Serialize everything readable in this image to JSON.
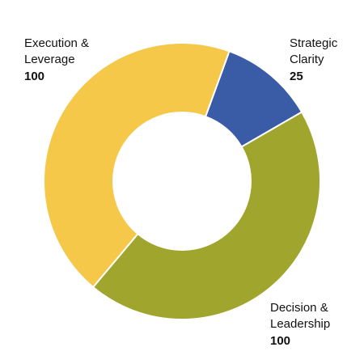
{
  "chart_data": {
    "type": "pie",
    "variant": "donut",
    "grid": false,
    "legend": "none",
    "categories": [
      "Strategic Clarity",
      "Decision & Leadership",
      "Execution & Leverage"
    ],
    "slices": [
      {
        "name": "Strategic Clarity",
        "label_lines": [
          "Strategic",
          "Clarity"
        ],
        "value": 25,
        "value_label": "25",
        "color": "#3A5BA5"
      },
      {
        "name": "Decision & Leadership",
        "label_lines": [
          "Decision &",
          "Leadership"
        ],
        "value": 100,
        "value_label": "100",
        "color": "#A0A52E"
      },
      {
        "name": "Execution & Leverage",
        "label_lines": [
          "Execution &",
          "Leverage"
        ],
        "value": 100,
        "value_label": "100",
        "color": "#F5C84A"
      }
    ]
  }
}
